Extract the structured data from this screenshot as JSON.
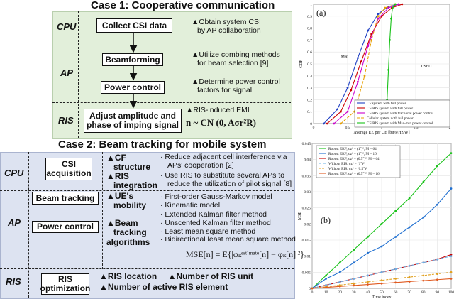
{
  "case1": {
    "title": "Case 1: Cooperative communication",
    "labels": {
      "cpu": "CPU",
      "ap": "AP",
      "ris": "RIS"
    },
    "boxes": {
      "collect": "Collect CSI data",
      "beamforming": "Beamforming",
      "power": "Power control",
      "adjust_line1": "Adjust amplitude and",
      "adjust_line2": "phase of imping signal"
    },
    "desc": {
      "cpu_1": "▲Obtain system CSI",
      "cpu_2": "by AP collaboration",
      "ap1_1": "▲Utilize combing methods",
      "ap1_2": "for beam selection [9]",
      "ap2_1": "▲Determine power control",
      "ap2_2": "factors for signal",
      "ris_1": "▲RIS-induced EMI",
      "ris_formula": "n ~ CN (0, Aσr²R)"
    }
  },
  "case2": {
    "title": "Case 2: Beam tracking for mobile system",
    "labels": {
      "cpu": "CPU",
      "ap": "AP",
      "ris": "RIS"
    },
    "boxes": {
      "csi1": "CSI",
      "csi2": "acquisition",
      "beam": "Beam tracking",
      "power": "Power control",
      "ris1": "RIS",
      "ris2": "optimization"
    },
    "heads": {
      "cf1": "▲CF",
      "cf2": "structure",
      "risint1": "▲RIS",
      "risint2": "integration",
      "ue1": "▲UE's",
      "ue2": "mobility",
      "bt1": "▲Beam",
      "bt2": "tracking",
      "bt3": "algorithms"
    },
    "bullets": {
      "cf_1": "· Reduce adjacent cell interference via",
      "cf_2": "APs' cooperation [2]",
      "ris_1": "· Use RIS to substitute several APs to",
      "ris_2": "reduce the utilization of pilot signal [8]",
      "ue_1": "· First-order Gauss-Markov model",
      "ue_2": "· Kinematic model",
      "bt_1": "· Extended Kalman filter method",
      "bt_2": "· Unscented Kalman filter method",
      "bt_3": "· Least mean square method",
      "bt_4": "· Bidirectional least mean square method"
    },
    "mse": "MSE[n] = E{|φₖᵉˢᵗⁱᵐᵃᵗᵉ[n] − φₖ[n]|²}",
    "ris_items": {
      "r1": "▲RIS location",
      "r2": "▲Number of RIS unit",
      "r3": "▲Number of active RIS element"
    }
  },
  "colors": {
    "case1_bg": "#e2efda",
    "case2_bg": "#dde3f1"
  },
  "chart_data": [
    {
      "type": "line",
      "panel": "(a)",
      "xlabel": "Average EE per UE [bit/s/Hz/W]",
      "ylabel": "CDF",
      "xlim": [
        0,
        2
      ],
      "ylim": [
        0,
        1
      ],
      "xticks": [
        "0",
        "0.5",
        "1",
        "1.5",
        "2"
      ],
      "yticks": [
        "0",
        "0.1",
        "0.2",
        "0.3",
        "0.4",
        "0.5",
        "0.6",
        "0.7",
        "0.8",
        "0.9",
        "1"
      ],
      "annotations": [
        "MR",
        "LSFD"
      ],
      "series": [
        {
          "name": "CF system with full power",
          "color": "#1f3fc4",
          "x": [
            0.15,
            0.35,
            0.5,
            0.65,
            0.8,
            0.95,
            1.1,
            1.25
          ],
          "y": [
            0.0,
            0.12,
            0.3,
            0.55,
            0.78,
            0.92,
            0.98,
            1.0
          ]
        },
        {
          "name": "CF-RIS system with full power",
          "color": "#cc0000",
          "x": [
            0.2,
            0.4,
            0.55,
            0.7,
            0.85,
            1.0,
            1.15,
            1.3
          ],
          "y": [
            0.0,
            0.1,
            0.28,
            0.52,
            0.75,
            0.9,
            0.97,
            1.0
          ]
        },
        {
          "name": "CF-RIS system with fractional power control",
          "color": "#cc00cc",
          "x": [
            0.3,
            0.5,
            0.65,
            0.8,
            0.95,
            1.1,
            1.25
          ],
          "y": [
            0.0,
            0.1,
            0.35,
            0.65,
            0.88,
            0.97,
            1.0
          ]
        },
        {
          "name": "Cellular system with full power",
          "color": "#e8a000",
          "x": [
            0.4,
            0.6,
            0.75,
            0.85,
            0.95,
            1.05,
            1.2
          ],
          "y": [
            0.0,
            0.1,
            0.4,
            0.7,
            0.9,
            0.97,
            1.0
          ]
        },
        {
          "name": "CF-RIS system with Max-min power control",
          "color": "#19c219",
          "x": [
            1.05,
            1.08,
            1.1,
            1.12,
            1.14,
            1.16,
            1.2
          ],
          "y": [
            0.0,
            0.2,
            0.45,
            0.7,
            0.88,
            0.97,
            1.0
          ]
        }
      ]
    },
    {
      "type": "line",
      "panel": "(b)",
      "xlabel": "Time index",
      "ylabel": "MSE",
      "xlim": [
        0,
        100
      ],
      "ylim": [
        0,
        0.045
      ],
      "xticks": [
        "0",
        "10",
        "20",
        "30",
        "40",
        "50",
        "60",
        "70",
        "80",
        "90",
        "100"
      ],
      "yticks": [
        "0",
        "0.005",
        "0.01",
        "0.015",
        "0.02",
        "0.025",
        "0.03",
        "0.035",
        "0.04",
        "0.045"
      ],
      "series": [
        {
          "name": "Robust EKF, σz² = (1°)², M = 64",
          "color": "#19c219",
          "x": [
            0,
            10,
            20,
            30,
            40,
            50,
            60,
            70,
            80,
            90,
            100
          ],
          "y": [
            0.0,
            0.004,
            0.008,
            0.012,
            0.016,
            0.02,
            0.024,
            0.028,
            0.033,
            0.038,
            0.042
          ]
        },
        {
          "name": "Robust EKF, σz² = (1°)², M = 16",
          "color": "#1f6fd0",
          "x": [
            0,
            10,
            20,
            30,
            40,
            50,
            60,
            70,
            80,
            90,
            100
          ],
          "y": [
            0.0,
            0.003,
            0.005,
            0.008,
            0.011,
            0.013,
            0.016,
            0.019,
            0.022,
            0.026,
            0.031
          ]
        },
        {
          "name": "Robust EKF, σz² = (0.5°)², M = 64",
          "color": "#c80000",
          "x": [
            0,
            10,
            20,
            30,
            40,
            50,
            60,
            70,
            80,
            90,
            100
          ],
          "y": [
            0.0,
            0.001,
            0.002,
            0.003,
            0.004,
            0.005,
            0.006,
            0.007,
            0.008,
            0.009,
            0.0105
          ]
        },
        {
          "name": "Without RIS, σz² = (1°)²",
          "color": "#6ab0e6",
          "x": [
            0,
            10,
            20,
            30,
            40,
            50,
            60,
            70,
            80,
            90,
            100
          ],
          "y": [
            0.0,
            0.001,
            0.002,
            0.003,
            0.004,
            0.005,
            0.006,
            0.007,
            0.008,
            0.009,
            0.01
          ]
        },
        {
          "name": "Without RIS, σz² = (0.5°)²",
          "color": "#e0a020",
          "x": [
            0,
            10,
            20,
            30,
            40,
            50,
            60,
            70,
            80,
            90,
            100
          ],
          "y": [
            0.0,
            0.0005,
            0.001,
            0.0015,
            0.002,
            0.0025,
            0.003,
            0.0035,
            0.004,
            0.0045,
            0.005
          ]
        },
        {
          "name": "Robust EKF, σz² = (0.5°)², M = 16",
          "color": "#e05a20",
          "x": [
            0,
            10,
            20,
            30,
            40,
            50,
            60,
            70,
            80,
            90,
            100
          ],
          "y": [
            0.0,
            0.0003,
            0.0006,
            0.0009,
            0.0012,
            0.0015,
            0.0018,
            0.0021,
            0.0024,
            0.0027,
            0.003
          ]
        }
      ]
    }
  ]
}
